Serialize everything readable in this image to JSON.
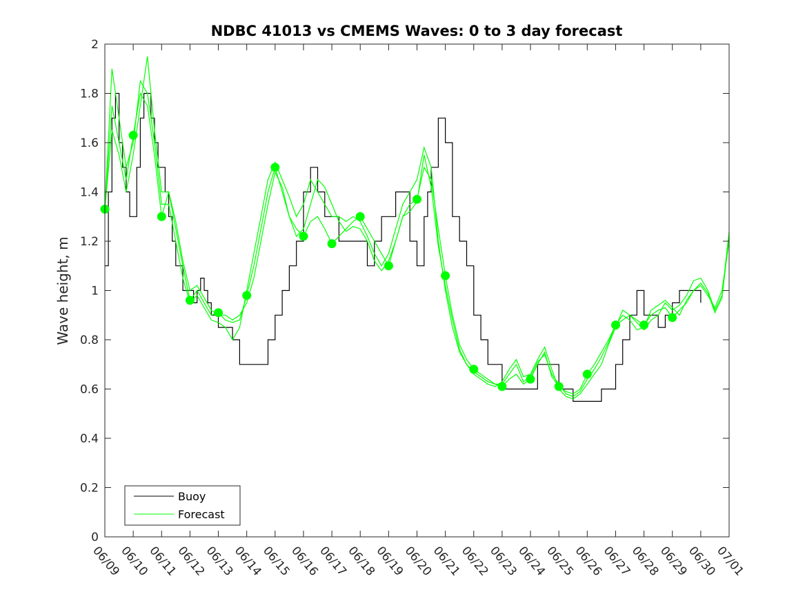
{
  "chart_data": {
    "type": "line",
    "title": "NDBC 41013 vs CMEMS Waves: 0 to 3 day forecast",
    "xlabel": "",
    "ylabel": "Wave height, m",
    "xlim": [
      "06/09",
      "07/01"
    ],
    "ylim": [
      0,
      2
    ],
    "x_ticks": [
      "06/09",
      "06/10",
      "06/11",
      "06/12",
      "06/13",
      "06/14",
      "06/15",
      "06/16",
      "06/17",
      "06/18",
      "06/19",
      "06/20",
      "06/21",
      "06/22",
      "06/23",
      "06/24",
      "06/25",
      "06/26",
      "06/27",
      "06/28",
      "06/29",
      "06/30",
      "07/01"
    ],
    "y_ticks": [
      "0",
      "0.2",
      "0.4",
      "0.6",
      "0.8",
      "1",
      "1.2",
      "1.4",
      "1.6",
      "1.8",
      "2"
    ],
    "grid": false,
    "legend": {
      "position": "bottom-left",
      "entries": [
        "Buoy",
        "Forecast"
      ]
    },
    "colors": {
      "buoy": "#000000",
      "forecast": "#00ff00"
    },
    "series": [
      {
        "name": "Buoy",
        "step": true,
        "x": [
          "06/09 00:00",
          "06/09 03:00",
          "06/09 06:00",
          "06/09 09:00",
          "06/09 12:00",
          "06/09 15:00",
          "06/09 18:00",
          "06/09 21:00",
          "06/10 00:00",
          "06/10 03:00",
          "06/10 06:00",
          "06/10 09:00",
          "06/10 12:00",
          "06/10 15:00",
          "06/10 18:00",
          "06/10 21:00",
          "06/11 00:00",
          "06/11 03:00",
          "06/11 06:00",
          "06/11 09:00",
          "06/11 12:00",
          "06/11 15:00",
          "06/11 18:00",
          "06/11 21:00",
          "06/12 00:00",
          "06/12 03:00",
          "06/12 06:00",
          "06/12 09:00",
          "06/12 12:00",
          "06/12 15:00",
          "06/12 18:00",
          "06/13 00:00",
          "06/13 06:00",
          "06/13 12:00",
          "06/13 18:00",
          "06/14 00:00",
          "06/14 06:00",
          "06/14 12:00",
          "06/14 18:00",
          "06/15 00:00",
          "06/15 06:00",
          "06/15 12:00",
          "06/15 18:00",
          "06/16 00:00",
          "06/16 06:00",
          "06/16 12:00",
          "06/16 18:00",
          "06/17 00:00",
          "06/17 06:00",
          "06/17 12:00",
          "06/17 18:00",
          "06/18 00:00",
          "06/18 06:00",
          "06/18 12:00",
          "06/18 18:00",
          "06/19 00:00",
          "06/19 06:00",
          "06/19 12:00",
          "06/19 18:00",
          "06/20 00:00",
          "06/20 06:00",
          "06/20 09:00",
          "06/20 12:00",
          "06/20 18:00",
          "06/21 00:00",
          "06/21 06:00",
          "06/21 12:00",
          "06/21 18:00",
          "06/22 00:00",
          "06/22 06:00",
          "06/22 12:00",
          "06/22 18:00",
          "06/23 00:00",
          "06/23 06:00",
          "06/23 12:00",
          "06/23 18:00",
          "06/24 00:00",
          "06/24 06:00",
          "06/24 12:00",
          "06/24 18:00",
          "06/25 00:00",
          "06/25 06:00",
          "06/25 12:00",
          "06/25 18:00",
          "06/26 00:00",
          "06/26 06:00",
          "06/26 12:00",
          "06/26 18:00",
          "06/27 00:00",
          "06/27 06:00",
          "06/27 12:00",
          "06/27 18:00",
          "06/28 00:00",
          "06/28 06:00",
          "06/28 12:00",
          "06/28 18:00",
          "06/29 00:00",
          "06/29 06:00",
          "06/29 12:00",
          "06/29 18:00",
          "06/30 00:00"
        ],
        "values": [
          1.1,
          1.4,
          1.7,
          1.8,
          1.6,
          1.5,
          1.4,
          1.3,
          1.3,
          1.5,
          1.7,
          1.8,
          1.8,
          1.7,
          1.6,
          1.5,
          1.5,
          1.4,
          1.3,
          1.2,
          1.1,
          1.1,
          1.0,
          1.0,
          1.0,
          0.95,
          1.0,
          1.05,
          1.0,
          0.95,
          0.9,
          0.85,
          0.85,
          0.8,
          0.7,
          0.7,
          0.7,
          0.7,
          0.8,
          0.9,
          1.0,
          1.1,
          1.2,
          1.4,
          1.5,
          1.4,
          1.3,
          1.3,
          1.2,
          1.2,
          1.2,
          1.2,
          1.1,
          1.2,
          1.3,
          1.3,
          1.4,
          1.4,
          1.2,
          1.1,
          1.3,
          1.4,
          1.5,
          1.7,
          1.6,
          1.3,
          1.2,
          1.1,
          0.9,
          0.8,
          0.7,
          0.7,
          0.6,
          0.6,
          0.6,
          0.6,
          0.6,
          0.7,
          0.7,
          0.7,
          0.6,
          0.6,
          0.55,
          0.55,
          0.55,
          0.55,
          0.6,
          0.6,
          0.7,
          0.8,
          0.9,
          1.0,
          0.9,
          0.9,
          0.85,
          0.9,
          0.95,
          1.0,
          1.0,
          1.0,
          0.95
        ]
      },
      {
        "name": "Forecast",
        "x": [
          "06/09 00:00",
          "06/09 06:00",
          "06/09 12:00",
          "06/09 18:00",
          "06/10 00:00",
          "06/10 06:00",
          "06/10 12:00",
          "06/10 18:00",
          "06/11 00:00",
          "06/11 06:00",
          "06/11 12:00",
          "06/11 18:00",
          "06/12 00:00",
          "06/12 06:00",
          "06/12 12:00",
          "06/12 18:00",
          "06/13 00:00",
          "06/13 06:00",
          "06/13 12:00",
          "06/13 18:00",
          "06/14 00:00",
          "06/14 06:00",
          "06/14 12:00",
          "06/14 18:00",
          "06/15 00:00",
          "06/15 06:00",
          "06/15 12:00",
          "06/15 18:00",
          "06/16 00:00",
          "06/16 06:00",
          "06/16 12:00",
          "06/16 18:00",
          "06/17 00:00",
          "06/17 06:00",
          "06/17 12:00",
          "06/17 18:00",
          "06/18 00:00",
          "06/18 06:00",
          "06/18 12:00",
          "06/18 18:00",
          "06/19 00:00",
          "06/19 06:00",
          "06/19 12:00",
          "06/19 18:00",
          "06/20 00:00",
          "06/20 06:00",
          "06/20 12:00",
          "06/20 18:00",
          "06/21 00:00",
          "06/21 06:00",
          "06/21 12:00",
          "06/21 18:00",
          "06/22 00:00",
          "06/22 06:00",
          "06/22 12:00",
          "06/22 18:00",
          "06/23 00:00",
          "06/23 06:00",
          "06/23 12:00",
          "06/23 18:00",
          "06/24 00:00",
          "06/24 06:00",
          "06/24 12:00",
          "06/24 18:00",
          "06/25 00:00",
          "06/25 06:00",
          "06/25 12:00",
          "06/25 18:00",
          "06/26 00:00",
          "06/26 06:00",
          "06/26 12:00",
          "06/26 18:00",
          "06/27 00:00",
          "06/27 06:00",
          "06/27 12:00",
          "06/27 18:00",
          "06/28 00:00",
          "06/28 06:00",
          "06/28 12:00",
          "06/28 18:00",
          "06/29 00:00",
          "06/29 06:00",
          "06/29 12:00",
          "06/29 18:00",
          "06/30 00:00",
          "06/30 06:00",
          "06/30 12:00",
          "06/30 18:00",
          "07/01 00:00"
        ],
        "values": [
          1.33,
          1.75,
          1.6,
          1.45,
          1.63,
          1.8,
          1.75,
          1.55,
          1.3,
          1.4,
          1.25,
          1.1,
          0.96,
          1.0,
          0.95,
          0.9,
          0.91,
          0.88,
          0.87,
          0.88,
          0.98,
          1.1,
          1.25,
          1.4,
          1.5,
          1.4,
          1.3,
          1.25,
          1.22,
          1.28,
          1.3,
          1.25,
          1.19,
          1.22,
          1.25,
          1.28,
          1.3,
          1.25,
          1.2,
          1.15,
          1.1,
          1.2,
          1.3,
          1.35,
          1.37,
          1.5,
          1.45,
          1.25,
          1.06,
          0.9,
          0.78,
          0.72,
          0.68,
          0.66,
          0.64,
          0.62,
          0.61,
          0.64,
          0.66,
          0.62,
          0.64,
          0.7,
          0.75,
          0.65,
          0.61,
          0.59,
          0.58,
          0.6,
          0.66,
          0.7,
          0.75,
          0.8,
          0.86,
          0.88,
          0.9,
          0.88,
          0.86,
          0.9,
          0.92,
          0.93,
          0.89,
          0.92,
          0.95,
          1.0,
          1.02,
          0.98,
          0.93,
          1.0,
          1.2
        ]
      },
      {
        "name": "Forecast",
        "x": [
          "06/09 00:00",
          "06/09 06:00",
          "06/09 12:00",
          "06/09 18:00",
          "06/10 00:00",
          "06/10 06:00",
          "06/10 12:00",
          "06/10 18:00",
          "06/11 00:00",
          "06/11 06:00",
          "06/11 12:00",
          "06/11 18:00",
          "06/12 00:00",
          "06/12 06:00",
          "06/12 12:00",
          "06/12 18:00",
          "06/13 00:00",
          "06/13 06:00",
          "06/13 12:00",
          "06/13 18:00",
          "06/14 00:00",
          "06/14 06:00",
          "06/14 12:00",
          "06/14 18:00",
          "06/15 00:00",
          "06/15 06:00",
          "06/15 12:00",
          "06/15 18:00",
          "06/16 00:00",
          "06/16 06:00",
          "06/16 12:00",
          "06/16 18:00",
          "06/17 00:00",
          "06/17 06:00",
          "06/17 12:00",
          "06/17 18:00",
          "06/18 00:00",
          "06/18 06:00",
          "06/18 12:00",
          "06/18 18:00",
          "06/19 00:00",
          "06/19 06:00",
          "06/19 12:00",
          "06/19 18:00",
          "06/20 00:00",
          "06/20 06:00",
          "06/20 12:00",
          "06/20 18:00",
          "06/21 00:00",
          "06/21 06:00",
          "06/21 12:00",
          "06/21 18:00",
          "06/22 00:00",
          "06/22 06:00",
          "06/22 12:00",
          "06/22 18:00",
          "06/23 00:00",
          "06/23 06:00",
          "06/23 12:00",
          "06/23 18:00",
          "06/24 00:00",
          "06/24 06:00",
          "06/24 12:00",
          "06/24 18:00",
          "06/25 00:00",
          "06/25 06:00",
          "06/25 12:00",
          "06/25 18:00",
          "06/26 00:00",
          "06/26 06:00",
          "06/26 12:00",
          "06/26 18:00",
          "06/27 00:00",
          "06/27 06:00",
          "06/27 12:00",
          "06/27 18:00",
          "06/28 00:00",
          "06/28 06:00",
          "06/28 12:00",
          "06/28 18:00",
          "06/29 00:00",
          "06/29 06:00",
          "06/29 12:00",
          "06/29 18:00",
          "06/30 00:00",
          "06/30 06:00",
          "06/30 12:00",
          "06/30 18:00",
          "07/01 00:00"
        ],
        "values": [
          1.33,
          1.9,
          1.7,
          1.5,
          1.6,
          1.85,
          1.8,
          1.6,
          1.35,
          1.35,
          1.2,
          1.05,
          0.95,
          0.98,
          0.93,
          0.88,
          0.87,
          0.85,
          0.8,
          0.85,
          1.0,
          1.15,
          1.3,
          1.45,
          1.52,
          1.45,
          1.38,
          1.3,
          1.35,
          1.45,
          1.4,
          1.35,
          1.3,
          1.3,
          1.28,
          1.3,
          1.28,
          1.22,
          1.15,
          1.1,
          1.15,
          1.25,
          1.35,
          1.4,
          1.45,
          1.58,
          1.5,
          1.2,
          1.0,
          0.85,
          0.75,
          0.7,
          0.66,
          0.64,
          0.62,
          0.61,
          0.63,
          0.68,
          0.72,
          0.65,
          0.66,
          0.72,
          0.77,
          0.68,
          0.6,
          0.57,
          0.56,
          0.58,
          0.62,
          0.66,
          0.7,
          0.78,
          0.85,
          0.92,
          0.9,
          0.87,
          0.84,
          0.88,
          0.9,
          0.95,
          0.92,
          0.94,
          0.98,
          1.04,
          1.05,
          1.0,
          0.92,
          0.98,
          1.24
        ]
      },
      {
        "name": "Forecast",
        "x": [
          "06/09 00:00",
          "06/09 06:00",
          "06/09 12:00",
          "06/09 18:00",
          "06/10 00:00",
          "06/10 06:00",
          "06/10 12:00",
          "06/10 18:00",
          "06/11 00:00",
          "06/11 06:00",
          "06/11 12:00",
          "06/11 18:00",
          "06/12 00:00",
          "06/12 06:00",
          "06/12 12:00",
          "06/12 18:00",
          "06/13 00:00",
          "06/13 06:00",
          "06/13 12:00",
          "06/13 18:00",
          "06/14 00:00",
          "06/14 06:00",
          "06/14 12:00",
          "06/14 18:00",
          "06/15 00:00",
          "06/15 06:00",
          "06/15 12:00",
          "06/15 18:00",
          "06/16 00:00",
          "06/16 06:00",
          "06/16 12:00",
          "06/16 18:00",
          "06/17 00:00",
          "06/17 06:00",
          "06/17 12:00",
          "06/17 18:00",
          "06/18 00:00",
          "06/18 06:00",
          "06/18 12:00",
          "06/18 18:00",
          "06/19 00:00",
          "06/19 06:00",
          "06/19 12:00",
          "06/19 18:00",
          "06/20 00:00",
          "06/20 06:00",
          "06/20 12:00",
          "06/20 18:00",
          "06/21 00:00",
          "06/21 06:00",
          "06/21 12:00",
          "06/21 18:00",
          "06/22 00:00",
          "06/22 06:00",
          "06/22 12:00",
          "06/22 18:00",
          "06/23 00:00",
          "06/23 06:00",
          "06/23 12:00",
          "06/23 18:00",
          "06/24 00:00",
          "06/24 06:00",
          "06/24 12:00",
          "06/24 18:00",
          "06/25 00:00",
          "06/25 06:00",
          "06/25 12:00",
          "06/25 18:00",
          "06/26 00:00",
          "06/26 06:00",
          "06/26 12:00",
          "06/26 18:00",
          "06/27 00:00",
          "06/27 06:00",
          "06/27 12:00",
          "06/27 18:00",
          "06/28 00:00",
          "06/28 06:00",
          "06/28 12:00",
          "06/28 18:00",
          "06/29 00:00",
          "06/29 06:00",
          "06/29 12:00",
          "06/29 18:00",
          "06/30 00:00",
          "06/30 06:00",
          "06/30 12:00",
          "06/30 18:00",
          "07/01 00:00"
        ],
        "values": [
          1.33,
          1.65,
          1.55,
          1.4,
          1.55,
          1.75,
          1.95,
          1.65,
          1.4,
          1.4,
          1.28,
          1.12,
          1.0,
          1.02,
          0.97,
          0.92,
          0.9,
          0.9,
          0.88,
          0.9,
          0.95,
          1.05,
          1.2,
          1.35,
          1.48,
          1.42,
          1.3,
          1.22,
          1.25,
          1.35,
          1.45,
          1.42,
          1.35,
          1.28,
          1.24,
          1.26,
          1.25,
          1.2,
          1.12,
          1.08,
          1.12,
          1.2,
          1.3,
          1.32,
          1.36,
          1.55,
          1.42,
          1.18,
          1.02,
          0.88,
          0.76,
          0.7,
          0.67,
          0.65,
          0.63,
          0.62,
          0.62,
          0.66,
          0.7,
          0.63,
          0.65,
          0.71,
          0.74,
          0.66,
          0.62,
          0.58,
          0.57,
          0.59,
          0.64,
          0.68,
          0.73,
          0.79,
          0.86,
          0.9,
          0.88,
          0.84,
          0.85,
          0.92,
          0.94,
          0.96,
          0.93,
          0.9,
          0.96,
          1.0,
          1.03,
          0.99,
          0.91,
          0.97,
          1.22
        ]
      }
    ],
    "markers": {
      "name": "Forecast",
      "x": [
        "06/09",
        "06/10",
        "06/11",
        "06/12",
        "06/13",
        "06/14",
        "06/15",
        "06/16",
        "06/17",
        "06/18",
        "06/19",
        "06/20",
        "06/21",
        "06/22",
        "06/23",
        "06/24",
        "06/25",
        "06/26",
        "06/27",
        "06/28",
        "06/29"
      ],
      "values": [
        1.33,
        1.63,
        1.3,
        0.96,
        0.91,
        0.98,
        1.5,
        1.22,
        1.19,
        1.3,
        1.1,
        1.37,
        1.06,
        0.68,
        0.61,
        0.64,
        0.61,
        0.66,
        0.86,
        0.86,
        0.89
      ]
    }
  }
}
